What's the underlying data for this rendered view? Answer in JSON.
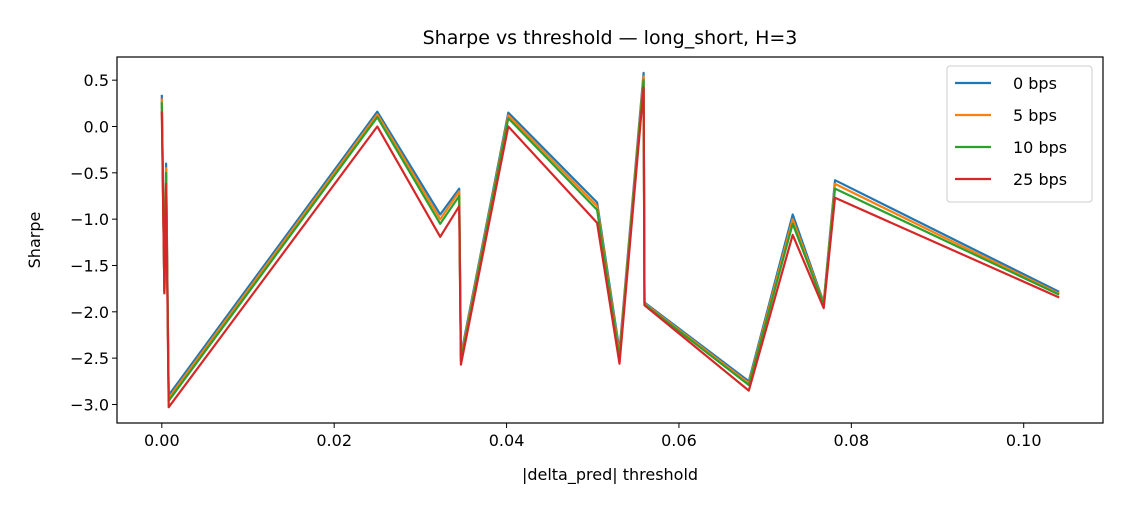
{
  "chart_data": {
    "type": "line",
    "title": "Sharpe vs threshold — long_short, H=3",
    "xlabel": "|delta_pred| threshold",
    "ylabel": "Sharpe",
    "xlim": [
      -0.0052,
      0.1092
    ],
    "ylim": [
      -3.2,
      0.75
    ],
    "xticks": [
      0.0,
      0.02,
      0.04,
      0.06,
      0.08,
      0.1
    ],
    "xtick_labels": [
      "0.00",
      "0.02",
      "0.04",
      "0.06",
      "0.08",
      "0.10"
    ],
    "yticks": [
      0.5,
      0.0,
      -0.5,
      -1.0,
      -1.5,
      -2.0,
      -2.5,
      -3.0
    ],
    "ytick_labels": [
      "0.5",
      "0.0",
      "−0.5",
      "−1.0",
      "−1.5",
      "−2.0",
      "−2.5",
      "−3.0"
    ],
    "grid": false,
    "legend_position": "top-right",
    "x": [
      0.0,
      0.0003,
      0.0005,
      0.0008,
      0.025,
      0.0323,
      0.0345,
      0.0347,
      0.0402,
      0.0505,
      0.0531,
      0.0559,
      0.056,
      0.0681,
      0.0732,
      0.0768,
      0.0781,
      0.104
    ],
    "series": [
      {
        "name": "0 bps",
        "color": "#1f77b4",
        "values": [
          0.33,
          -1.78,
          -0.4,
          -2.9,
          0.16,
          -0.95,
          -0.67,
          -2.47,
          0.15,
          -0.82,
          -2.42,
          0.58,
          -1.9,
          -2.75,
          -0.95,
          -1.9,
          -0.58,
          -1.78
        ]
      },
      {
        "name": "5 bps",
        "color": "#ff7f0e",
        "values": [
          0.29,
          -1.79,
          -0.45,
          -2.93,
          0.13,
          -1.0,
          -0.7,
          -2.5,
          0.12,
          -0.86,
          -2.46,
          0.54,
          -1.91,
          -2.77,
          -1.0,
          -1.91,
          -0.62,
          -1.8
        ]
      },
      {
        "name": "10 bps",
        "color": "#2ca02c",
        "values": [
          0.25,
          -1.8,
          -0.5,
          -2.96,
          0.1,
          -1.05,
          -0.75,
          -2.53,
          0.09,
          -0.9,
          -2.5,
          0.5,
          -1.92,
          -2.79,
          -1.05,
          -1.92,
          -0.67,
          -1.81
        ]
      },
      {
        "name": "25 bps",
        "color": "#d62728",
        "values": [
          0.15,
          -1.8,
          -0.62,
          -3.03,
          0.0,
          -1.19,
          -0.86,
          -2.57,
          0.0,
          -1.04,
          -2.56,
          0.42,
          -1.93,
          -2.85,
          -1.17,
          -1.96,
          -0.77,
          -1.84
        ]
      }
    ]
  }
}
